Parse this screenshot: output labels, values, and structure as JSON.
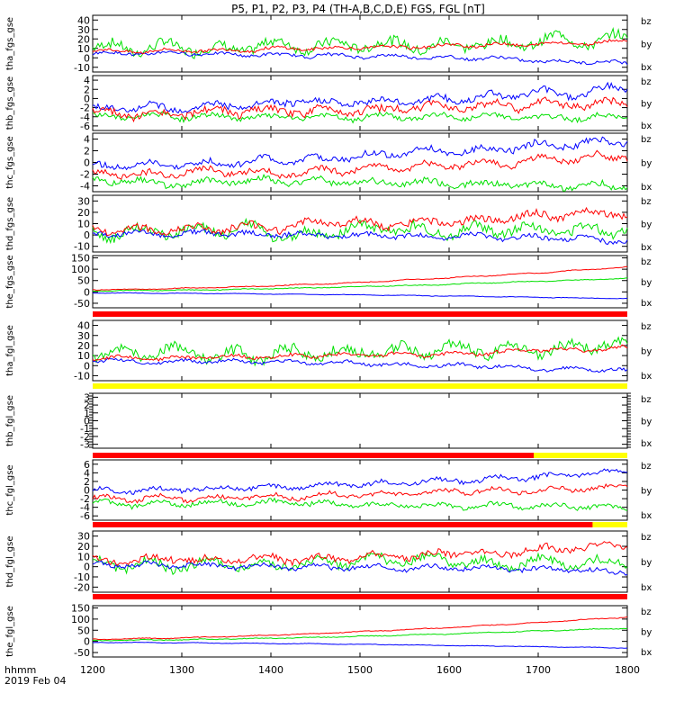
{
  "title": "P5, P1, P2, P3, P4 (TH-A,B,C,D,E) FGS, FGL [nT]",
  "footer": {
    "label1": "hhmm",
    "label2": "2019 Feb 04"
  },
  "colors": {
    "bx": "#0000ff",
    "by": "#00e000",
    "bz": "#ff0000",
    "bar_red": "#ff0000",
    "bar_yellow": "#ffff00",
    "axis": "#000000"
  },
  "chart_data": {
    "type": "line",
    "x_ticks": [
      "1200",
      "1300",
      "1400",
      "1500",
      "1600",
      "1700",
      "1800"
    ],
    "xlim": [
      1200,
      1800
    ],
    "panels": [
      {
        "id": "p1",
        "ylabel": "tha_fgs_gse",
        "yticks": [
          "40",
          "30",
          "20",
          "10",
          "0",
          "-10"
        ],
        "ylim": [
          -15,
          45
        ],
        "legend": [
          "bz",
          "by",
          "bx"
        ],
        "series": {
          "bx": {
            "base": 5,
            "amp": 3,
            "end": -5
          },
          "by": {
            "base": 12,
            "amp": 10,
            "end": 20
          },
          "bz": {
            "base": 7,
            "amp": 3,
            "end": 18
          }
        }
      },
      {
        "id": "p2",
        "ylabel": "thb_fgs_gse",
        "yticks": [
          "4",
          "2",
          "0",
          "-2",
          "-4",
          "-6"
        ],
        "ylim": [
          -7,
          5
        ],
        "legend": [
          "bz",
          "by",
          "bx"
        ],
        "series": {
          "bx": {
            "base": -2,
            "amp": 1.5,
            "end": 2
          },
          "by": {
            "base": -4,
            "amp": 1,
            "end": -4
          },
          "bz": {
            "base": -3,
            "amp": 1.5,
            "end": -1
          }
        }
      },
      {
        "id": "p3",
        "ylabel": "thc_fgs_gse",
        "yticks": [
          "4",
          "2",
          "0",
          "-2",
          "-4"
        ],
        "ylim": [
          -5,
          5
        ],
        "legend": [
          "bz",
          "by",
          "bx"
        ],
        "series": {
          "bx": {
            "base": -0.5,
            "amp": 1,
            "end": 4
          },
          "by": {
            "base": -3,
            "amp": 1,
            "end": -4
          },
          "bz": {
            "base": -2,
            "amp": 1,
            "end": 1
          }
        }
      },
      {
        "id": "p4",
        "ylabel": "thd_fgs_gse",
        "yticks": [
          "30",
          "20",
          "10",
          "0",
          "-10"
        ],
        "ylim": [
          -15,
          35
        ],
        "legend": [
          "bz",
          "by",
          "bx"
        ],
        "series": {
          "bx": {
            "base": 2,
            "amp": 4,
            "end": -5
          },
          "by": {
            "base": 3,
            "amp": 8,
            "end": 5
          },
          "bz": {
            "base": 5,
            "amp": 6,
            "end": 20
          }
        }
      },
      {
        "id": "p5",
        "ylabel": "the_fgs_gse",
        "yticks": [
          "150",
          "100",
          "50",
          "0",
          "-50"
        ],
        "ylim": [
          -70,
          160
        ],
        "legend": [
          "bz",
          "by",
          "bx"
        ],
        "series": {
          "bx": {
            "base": -5,
            "amp": 2,
            "end": -30
          },
          "by": {
            "base": 5,
            "amp": 3,
            "end": 60
          },
          "bz": {
            "base": 10,
            "amp": 3,
            "end": 110
          }
        }
      },
      {
        "id": "p6",
        "ylabel": "tha_fgl_gse",
        "yticks": [
          "40",
          "30",
          "20",
          "10",
          "0",
          "-10"
        ],
        "ylim": [
          -15,
          45
        ],
        "legend": [
          "bz",
          "by",
          "bx"
        ],
        "series": {
          "bx": {
            "base": 5,
            "amp": 3,
            "end": -5
          },
          "by": {
            "base": 12,
            "amp": 10,
            "end": 20
          },
          "bz": {
            "base": 7,
            "amp": 3,
            "end": 18
          }
        }
      },
      {
        "id": "p7",
        "ylabel": "thb_fgl_gse",
        "yticks": [
          "3",
          "2",
          "1",
          "0",
          "-1",
          "-2",
          "-3"
        ],
        "ylim": [
          -3.5,
          3.5
        ],
        "legend": [
          "bz",
          "by",
          "bx"
        ],
        "series": {}
      },
      {
        "id": "p8",
        "ylabel": "thc_fgl_gse",
        "yticks": [
          "6",
          "4",
          "2",
          "0",
          "-2",
          "-4",
          "-6"
        ],
        "ylim": [
          -7,
          7
        ],
        "legend": [
          "bz",
          "by",
          "bx"
        ],
        "series": {
          "bx": {
            "base": 0,
            "amp": 1,
            "end": 4
          },
          "by": {
            "base": -3,
            "amp": 1,
            "end": -4
          },
          "bz": {
            "base": -2,
            "amp": 1,
            "end": 1
          }
        }
      },
      {
        "id": "p9",
        "ylabel": "thd_fgl_gse",
        "yticks": [
          "30",
          "20",
          "10",
          "0",
          "-10",
          "-20"
        ],
        "ylim": [
          -25,
          35
        ],
        "legend": [
          "bz",
          "by",
          "bx"
        ],
        "series": {
          "bx": {
            "base": 2,
            "amp": 4,
            "end": -5
          },
          "by": {
            "base": 3,
            "amp": 8,
            "end": 5
          },
          "bz": {
            "base": 5,
            "amp": 6,
            "end": 20
          }
        }
      },
      {
        "id": "p10",
        "ylabel": "the_fgl_gse",
        "yticks": [
          "150",
          "100",
          "50",
          "0",
          "-50"
        ],
        "ylim": [
          -70,
          160
        ],
        "legend": [
          "bz",
          "by",
          "bx"
        ],
        "series": {
          "bx": {
            "base": -5,
            "amp": 2,
            "end": -30
          },
          "by": {
            "base": 5,
            "amp": 3,
            "end": 60
          },
          "bz": {
            "base": 10,
            "amp": 3,
            "end": 110
          }
        }
      }
    ]
  }
}
